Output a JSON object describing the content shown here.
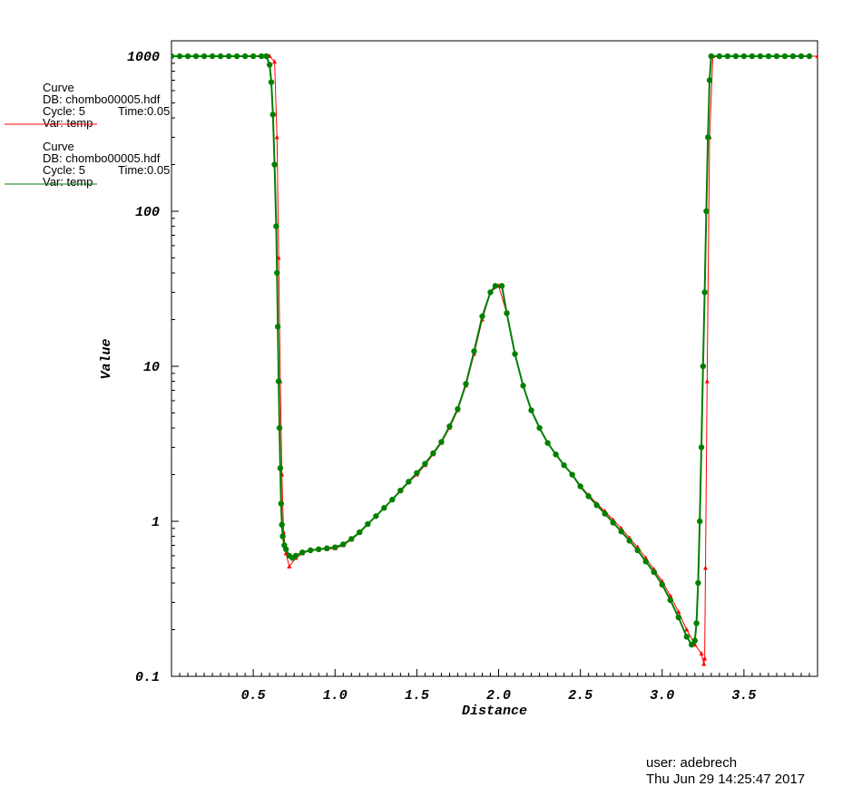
{
  "chart_data": {
    "type": "line",
    "xlabel": "Distance",
    "ylabel": "Value",
    "xlim": [
      0.0,
      3.95
    ],
    "ylim": [
      0.1,
      1000
    ],
    "yscale": "log",
    "grid": false,
    "x_ticks": [
      {
        "value": 0.5,
        "label": "0.5"
      },
      {
        "value": 1.0,
        "label": "1.0"
      },
      {
        "value": 1.5,
        "label": "1.5"
      },
      {
        "value": 2.0,
        "label": "2.0"
      },
      {
        "value": 2.5,
        "label": "2.5"
      },
      {
        "value": 3.0,
        "label": "3.0"
      },
      {
        "value": 3.5,
        "label": "3.5"
      }
    ],
    "y_ticks": [
      {
        "value": 1000,
        "label": "1000"
      },
      {
        "value": 100,
        "label": "100"
      },
      {
        "value": 10,
        "label": "10"
      },
      {
        "value": 1,
        "label": "1"
      },
      {
        "value": 0.1,
        "label": "0.1"
      }
    ],
    "series": [
      {
        "color": "#ff0000",
        "marker": "triangle",
        "x": [
          0.0,
          0.05,
          0.1,
          0.15,
          0.2,
          0.25,
          0.3,
          0.35,
          0.4,
          0.45,
          0.5,
          0.55,
          0.6,
          0.63,
          0.645,
          0.655,
          0.665,
          0.675,
          0.685,
          0.7,
          0.72,
          0.76,
          0.8,
          0.85,
          0.9,
          0.95,
          1.0,
          1.05,
          1.1,
          1.15,
          1.2,
          1.25,
          1.3,
          1.35,
          1.4,
          1.45,
          1.5,
          1.55,
          1.6,
          1.65,
          1.7,
          1.75,
          1.8,
          1.85,
          1.9,
          1.95,
          2.0,
          2.05,
          2.1,
          2.15,
          2.2,
          2.25,
          2.3,
          2.35,
          2.4,
          2.45,
          2.5,
          2.55,
          2.6,
          2.65,
          2.7,
          2.75,
          2.8,
          2.85,
          2.9,
          2.95,
          3.0,
          3.05,
          3.1,
          3.15,
          3.2,
          3.24,
          3.255,
          3.26,
          3.265,
          3.275,
          3.29,
          3.31,
          3.35,
          3.4,
          3.45,
          3.5,
          3.55,
          3.6,
          3.65,
          3.7,
          3.75,
          3.8,
          3.85,
          3.9,
          3.95
        ],
        "y": [
          1000,
          1000,
          1000,
          1000,
          1000,
          1000,
          1000,
          1000,
          1000,
          1000,
          1000,
          1000,
          1000,
          920,
          300,
          50,
          8,
          2,
          0.85,
          0.62,
          0.51,
          0.58,
          0.62,
          0.65,
          0.66,
          0.66,
          0.67,
          0.7,
          0.76,
          0.84,
          0.95,
          1.08,
          1.22,
          1.38,
          1.56,
          1.78,
          2.0,
          2.3,
          2.7,
          3.2,
          4.0,
          5.2,
          7.5,
          12,
          20,
          30,
          33,
          22,
          12,
          7.5,
          5.2,
          4.0,
          3.2,
          2.7,
          2.3,
          2.0,
          1.7,
          1.48,
          1.3,
          1.16,
          1.02,
          0.9,
          0.78,
          0.68,
          0.58,
          0.49,
          0.41,
          0.33,
          0.26,
          0.2,
          0.16,
          0.14,
          0.12,
          0.13,
          0.5,
          8,
          300,
          1000,
          1000,
          1000,
          1000,
          1000,
          1000,
          1000,
          1000,
          1000,
          1000,
          1000,
          1000,
          1000,
          1000
        ]
      },
      {
        "color": "#008000",
        "marker": "dot",
        "x": [
          0.0,
          0.05,
          0.1,
          0.15,
          0.2,
          0.25,
          0.3,
          0.35,
          0.4,
          0.45,
          0.5,
          0.55,
          0.58,
          0.6,
          0.61,
          0.62,
          0.63,
          0.64,
          0.645,
          0.65,
          0.655,
          0.66,
          0.665,
          0.67,
          0.675,
          0.68,
          0.69,
          0.7,
          0.72,
          0.74,
          0.76,
          0.8,
          0.85,
          0.9,
          0.95,
          1.0,
          1.05,
          1.1,
          1.15,
          1.2,
          1.25,
          1.3,
          1.35,
          1.4,
          1.45,
          1.5,
          1.55,
          1.6,
          1.65,
          1.7,
          1.75,
          1.8,
          1.85,
          1.9,
          1.95,
          1.98,
          2.02,
          2.05,
          2.1,
          2.15,
          2.2,
          2.25,
          2.3,
          2.35,
          2.4,
          2.45,
          2.5,
          2.55,
          2.6,
          2.65,
          2.7,
          2.75,
          2.8,
          2.85,
          2.9,
          2.95,
          3.0,
          3.05,
          3.1,
          3.15,
          3.18,
          3.2,
          3.21,
          3.22,
          3.23,
          3.24,
          3.25,
          3.26,
          3.27,
          3.28,
          3.29,
          3.3,
          3.35,
          3.4,
          3.45,
          3.5,
          3.55,
          3.6,
          3.65,
          3.7,
          3.75,
          3.8,
          3.85,
          3.9
        ],
        "y": [
          1000,
          1000,
          1000,
          1000,
          1000,
          1000,
          1000,
          1000,
          1000,
          1000,
          1000,
          1000,
          1000,
          880,
          680,
          420,
          200,
          80,
          40,
          18,
          8,
          4,
          2.2,
          1.3,
          0.95,
          0.8,
          0.7,
          0.66,
          0.6,
          0.58,
          0.6,
          0.63,
          0.65,
          0.66,
          0.67,
          0.68,
          0.71,
          0.77,
          0.85,
          0.96,
          1.08,
          1.22,
          1.38,
          1.58,
          1.8,
          2.05,
          2.35,
          2.75,
          3.25,
          4.1,
          5.3,
          7.7,
          12.5,
          21,
          30,
          33,
          33,
          22,
          12,
          7.5,
          5.2,
          4.0,
          3.2,
          2.7,
          2.3,
          2.0,
          1.68,
          1.45,
          1.27,
          1.12,
          0.98,
          0.86,
          0.75,
          0.65,
          0.55,
          0.47,
          0.39,
          0.31,
          0.24,
          0.18,
          0.16,
          0.17,
          0.22,
          0.4,
          1.0,
          3.0,
          10,
          30,
          100,
          300,
          700,
          1000,
          1000,
          1000,
          1000,
          1000,
          1000,
          1000,
          1000,
          1000,
          1000,
          1000,
          1000,
          1000
        ]
      }
    ]
  },
  "legend": {
    "entries": [
      {
        "title": "Curve",
        "db": "DB: chombo00005.hdf",
        "cycle": "Cycle: 5",
        "time": "Time:0.05",
        "var": "Var: temp",
        "color": "#ff0000"
      },
      {
        "title": "Curve",
        "db": "DB: chombo00005.hdf",
        "cycle": "Cycle: 5",
        "time": "Time:0.05",
        "var": "Var: temp",
        "color": "#008000"
      }
    ]
  },
  "footer": {
    "user": "user: adebrech",
    "date": "Thu Jun 29 14:25:47 2017"
  }
}
